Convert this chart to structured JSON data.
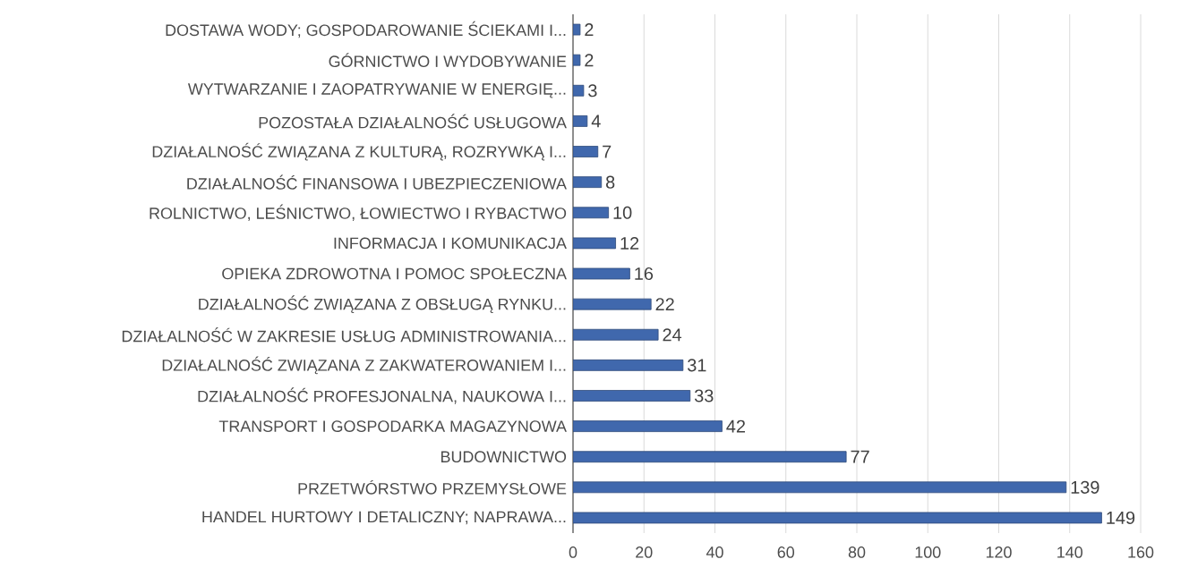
{
  "chart_data": {
    "type": "bar",
    "orientation": "horizontal",
    "categories": [
      "DOSTAWA WODY; GOSPODAROWANIE ŚCIEKAMI I...",
      "GÓRNICTWO I WYDOBYWANIE",
      "WYTWARZANIE I ZAOPATRYWANIE W ENERGIĘ...",
      "POZOSTAŁA DZIAŁALNOŚĆ USŁUGOWA",
      "DZIAŁALNOŚĆ ZWIĄZANA Z KULTURĄ, ROZRYWKĄ I...",
      "DZIAŁALNOŚĆ FINANSOWA I UBEZPIECZENIOWA",
      "ROLNICTWO, LEŚNICTWO, ŁOWIECTWO I RYBACTWO",
      "INFORMACJA I KOMUNIKACJA",
      "OPIEKA ZDROWOTNA I POMOC SPOŁECZNA",
      "DZIAŁALNOŚĆ ZWIĄZANA Z OBSŁUGĄ RYNKU...",
      "DZIAŁALNOŚĆ W ZAKRESIE USŁUG ADMINISTROWANIA...",
      "DZIAŁALNOŚĆ ZWIĄZANA Z ZAKWATEROWANIEM I...",
      "DZIAŁALNOŚĆ PROFESJONALNA, NAUKOWA I...",
      "TRANSPORT I GOSPODARKA MAGAZYNOWA",
      "BUDOWNICTWO",
      "PRZETWÓRSTWO PRZEMYSŁOWE",
      "HANDEL HURTOWY I DETALICZNY; NAPRAWA..."
    ],
    "values": [
      2,
      2,
      3,
      4,
      7,
      8,
      10,
      12,
      16,
      22,
      24,
      31,
      33,
      42,
      77,
      139,
      149
    ],
    "color": "#4068ad",
    "xlim": [
      0,
      160
    ],
    "xticks": [
      0,
      20,
      40,
      60,
      80,
      100,
      120,
      140,
      160
    ],
    "grid": "x",
    "data_labels": true
  }
}
